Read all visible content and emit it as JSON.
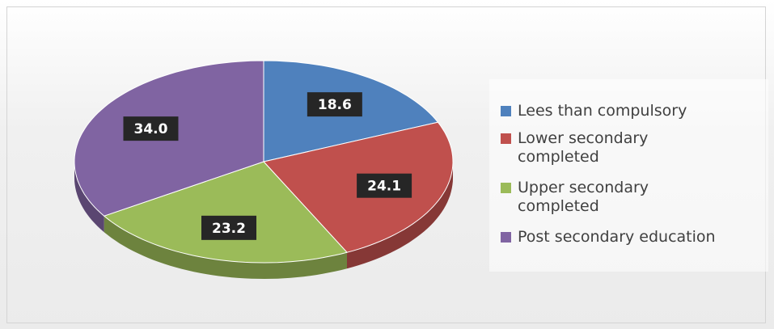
{
  "chart_data": {
    "type": "pie",
    "categories": [
      "Lees than compulsory",
      "Lower secondary completed",
      "Upper secondary completed",
      "Post secondary education"
    ],
    "values": [
      18.6,
      24.1,
      23.2,
      34.0
    ],
    "value_labels": [
      "18.6",
      "24.1",
      "23.2",
      "34.0"
    ],
    "colors": [
      "#4f81bd",
      "#c0504d",
      "#9bbb59",
      "#8064a2"
    ],
    "legend": "right"
  }
}
